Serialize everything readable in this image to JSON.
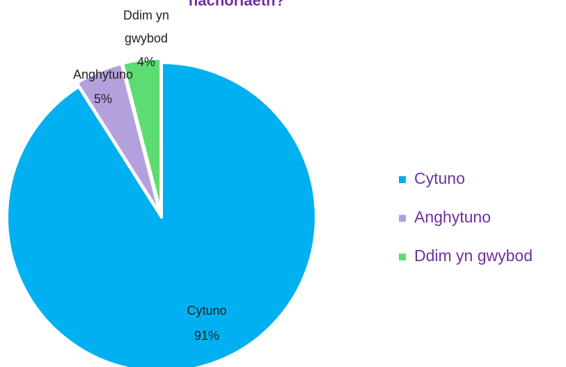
{
  "chart_data": {
    "type": "pie",
    "title": "nachoriaeth?",
    "categories": [
      "Cytuno",
      "Anghytuno",
      "Ddim yn gwybod"
    ],
    "values": [
      91,
      5,
      4
    ],
    "value_labels": [
      "91%",
      "5%",
      "4%"
    ],
    "colors": [
      "#00b0f0",
      "#b4a0dc",
      "#5edc74"
    ],
    "legend": "right"
  }
}
